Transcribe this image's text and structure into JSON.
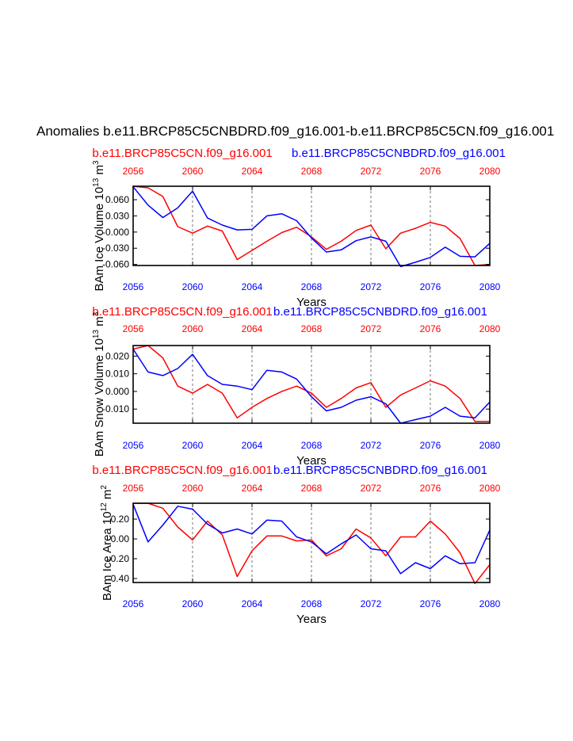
{
  "page_title": "Anomalies b.e11.BRCP85C5CNBDRD.f09_g16.001-b.e11.BRCP85C5CN.f09_g16.001",
  "colors": {
    "series_a": "#ff0000",
    "series_b": "#0000ff",
    "axis": "#000000"
  },
  "chart_data": [
    {
      "type": "line",
      "ylabel": "BAm Ice Volume 10^13 m^3",
      "xlabel": "Years",
      "xlim": [
        2056,
        2080
      ],
      "ylim": [
        -0.062,
        0.085
      ],
      "yticks": [
        "0.060",
        "0.030",
        "-0.000",
        "-0.030",
        "-0.060"
      ],
      "ytick_values": [
        0.06,
        0.03,
        0.0,
        -0.03,
        -0.06
      ],
      "xticks": [
        "2056",
        "2060",
        "2064",
        "2068",
        "2072",
        "2076",
        "2080"
      ],
      "top_series_label": "b.e11.BRCP85C5CN.f09_g16.001",
      "bottom_series_label": "b.e11.BRCP85C5CNBDRD.f09_g16.001",
      "series": [
        {
          "name": "b.e11.BRCP85C5CN.f09_g16.001",
          "color": "red",
          "x": [
            2056,
            2057,
            2058,
            2059,
            2060,
            2061,
            2062,
            2063,
            2064,
            2065,
            2066,
            2067,
            2068,
            2069,
            2070,
            2071,
            2072,
            2073,
            2074,
            2075,
            2076,
            2077,
            2078,
            2079,
            2080
          ],
          "values": [
            0.085,
            0.082,
            0.066,
            0.01,
            -0.002,
            0.011,
            0.002,
            -0.051,
            -0.034,
            -0.017,
            -0.001,
            0.009,
            -0.009,
            -0.032,
            -0.017,
            0.003,
            0.013,
            -0.031,
            -0.002,
            0.007,
            0.018,
            0.011,
            -0.012,
            -0.062,
            -0.06
          ]
        },
        {
          "name": "b.e11.BRCP85C5CNBDRD.f09_g16.001",
          "color": "blue",
          "x": [
            2056,
            2057,
            2058,
            2059,
            2060,
            2061,
            2062,
            2063,
            2064,
            2065,
            2066,
            2067,
            2068,
            2069,
            2070,
            2071,
            2072,
            2073,
            2074,
            2075,
            2076,
            2077,
            2078,
            2079,
            2080
          ],
          "values": [
            0.084,
            0.05,
            0.027,
            0.045,
            0.076,
            0.026,
            0.013,
            0.004,
            0.005,
            0.03,
            0.034,
            0.021,
            -0.011,
            -0.037,
            -0.033,
            -0.016,
            -0.009,
            -0.017,
            -0.064,
            -0.056,
            -0.047,
            -0.028,
            -0.045,
            -0.046,
            -0.021
          ]
        }
      ]
    },
    {
      "type": "line",
      "ylabel": "BAm Snow Volume 10^13 m^3",
      "xlabel": "Years",
      "xlim": [
        2056,
        2080
      ],
      "ylim": [
        -0.018,
        0.026
      ],
      "yticks": [
        "0.020",
        "0.010",
        "0.000",
        "-0.010"
      ],
      "ytick_values": [
        0.02,
        0.01,
        0.0,
        -0.01
      ],
      "xticks": [
        "2056",
        "2060",
        "2064",
        "2068",
        "2072",
        "2076",
        "2080"
      ],
      "top_series_label": "b.e11.BRCP85C5CN.f09_g16.001",
      "bottom_series_label": "b.e11.BRCP85C5CNBDRD.f09_g16.001",
      "series": [
        {
          "name": "b.e11.BRCP85C5CN.f09_g16.001",
          "color": "red",
          "x": [
            2056,
            2057,
            2058,
            2059,
            2060,
            2061,
            2062,
            2063,
            2064,
            2065,
            2066,
            2067,
            2068,
            2069,
            2070,
            2071,
            2072,
            2073,
            2074,
            2075,
            2076,
            2077,
            2078,
            2079,
            2080
          ],
          "values": [
            0.024,
            0.026,
            0.019,
            0.003,
            -0.001,
            0.004,
            -0.001,
            -0.015,
            -0.009,
            -0.004,
            0.0,
            0.003,
            -0.001,
            -0.009,
            -0.004,
            0.002,
            0.005,
            -0.009,
            -0.002,
            0.002,
            0.006,
            0.003,
            -0.004,
            -0.017,
            -0.017
          ]
        },
        {
          "name": "b.e11.BRCP85C5CNBDRD.f09_g16.001",
          "color": "blue",
          "x": [
            2056,
            2057,
            2058,
            2059,
            2060,
            2061,
            2062,
            2063,
            2064,
            2065,
            2066,
            2067,
            2068,
            2069,
            2070,
            2071,
            2072,
            2073,
            2074,
            2075,
            2076,
            2077,
            2078,
            2079,
            2080
          ],
          "values": [
            0.024,
            0.011,
            0.009,
            0.013,
            0.021,
            0.009,
            0.004,
            0.003,
            0.001,
            0.012,
            0.011,
            0.007,
            -0.003,
            -0.011,
            -0.009,
            -0.005,
            -0.003,
            -0.007,
            -0.018,
            -0.016,
            -0.014,
            -0.009,
            -0.014,
            -0.015,
            -0.006
          ]
        }
      ]
    },
    {
      "type": "line",
      "ylabel": "BAm Ice Area 10^12 m^2",
      "xlabel": "Years",
      "xlim": [
        2056,
        2080
      ],
      "ylim": [
        -0.44,
        0.36
      ],
      "yticks": [
        "0.20",
        "0.00",
        "-0.20",
        "-0.40"
      ],
      "ytick_values": [
        0.2,
        0.0,
        -0.2,
        -0.4
      ],
      "xticks": [
        "2056",
        "2060",
        "2064",
        "2068",
        "2072",
        "2076",
        "2080"
      ],
      "top_series_label": "b.e11.BRCP85C5CN.f09_g16.001",
      "bottom_series_label": "b.e11.BRCP85C5CNBDRD.f09_g16.001",
      "series": [
        {
          "name": "b.e11.BRCP85C5CN.f09_g16.001",
          "color": "red",
          "x": [
            2056,
            2057,
            2058,
            2059,
            2060,
            2061,
            2062,
            2063,
            2064,
            2065,
            2066,
            2067,
            2068,
            2069,
            2070,
            2071,
            2072,
            2073,
            2074,
            2075,
            2076,
            2077,
            2078,
            2079,
            2080
          ],
          "values": [
            0.36,
            0.36,
            0.31,
            0.12,
            -0.01,
            0.18,
            0.04,
            -0.38,
            -0.12,
            0.03,
            0.03,
            -0.02,
            -0.01,
            -0.17,
            -0.1,
            0.1,
            0.01,
            -0.17,
            0.02,
            0.02,
            0.18,
            0.05,
            -0.14,
            -0.45,
            -0.26
          ]
        },
        {
          "name": "b.e11.BRCP85C5CNBDRD.f09_g16.001",
          "color": "blue",
          "x": [
            2056,
            2057,
            2058,
            2059,
            2060,
            2061,
            2062,
            2063,
            2064,
            2065,
            2066,
            2067,
            2068,
            2069,
            2070,
            2071,
            2072,
            2073,
            2074,
            2075,
            2076,
            2077,
            2078,
            2079,
            2080
          ],
          "values": [
            0.35,
            -0.03,
            0.14,
            0.33,
            0.3,
            0.15,
            0.06,
            0.1,
            0.05,
            0.19,
            0.18,
            0.02,
            -0.03,
            -0.15,
            -0.05,
            0.04,
            -0.1,
            -0.12,
            -0.35,
            -0.24,
            -0.3,
            -0.17,
            -0.25,
            -0.24,
            0.09
          ]
        }
      ]
    }
  ]
}
